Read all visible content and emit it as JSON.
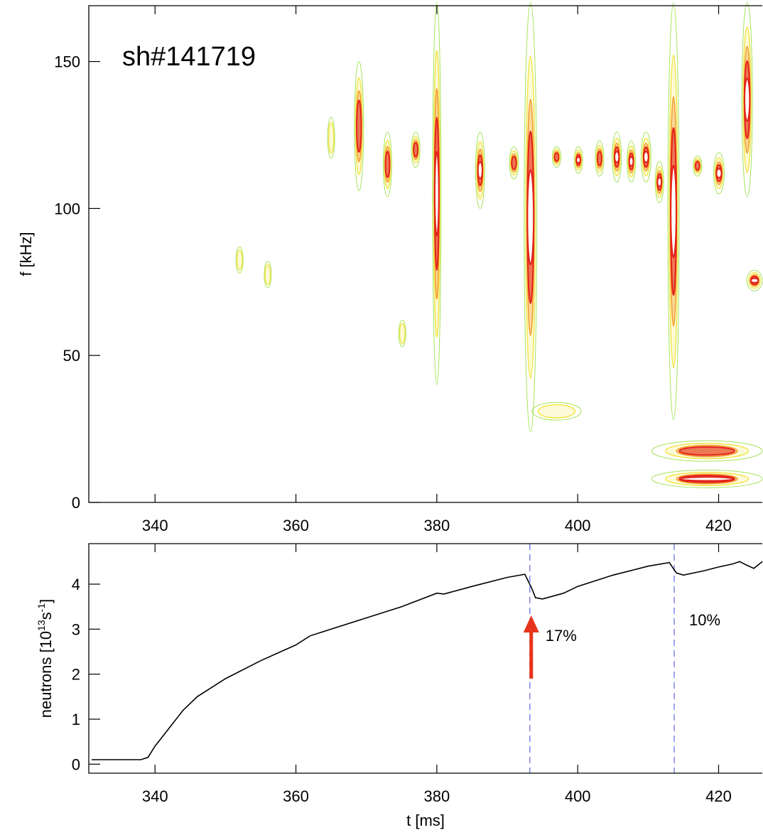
{
  "chart_data": [
    {
      "type": "spectrogram",
      "label": "sh#141719",
      "ylabel": "f [kHz]",
      "xlim": [
        330.6,
        426.2
      ],
      "ylim": [
        0,
        169
      ],
      "xticks": [
        340,
        360,
        380,
        400,
        420
      ],
      "yticks": [
        0,
        50,
        100,
        150
      ],
      "modes": [
        {
          "t": [
            364.5,
            365.5
          ],
          "f": [
            117,
            131
          ],
          "level": 1
        },
        {
          "t": [
            368.3,
            369.6
          ],
          "f": [
            106,
            150
          ],
          "level": 2
        },
        {
          "t": [
            372.4,
            373.6
          ],
          "f": [
            104,
            126
          ],
          "level": 2
        },
        {
          "t": [
            376.4,
            377.6
          ],
          "f": [
            114,
            126
          ],
          "level": 2
        },
        {
          "t": [
            379.4,
            380.6
          ],
          "f": [
            40,
            170
          ],
          "level": 3
        },
        {
          "t": [
            385.5,
            386.8
          ],
          "f": [
            100,
            126
          ],
          "level": 3
        },
        {
          "t": [
            390.3,
            391.6
          ],
          "f": [
            110,
            121
          ],
          "level": 2
        },
        {
          "t": [
            392.4,
            394.2
          ],
          "f": [
            24,
            170
          ],
          "level": 3
        },
        {
          "t": [
            396.4,
            397.6
          ],
          "f": [
            114,
            121
          ],
          "level": 2
        },
        {
          "t": [
            399.5,
            400.7
          ],
          "f": [
            112,
            121
          ],
          "level": 3
        },
        {
          "t": [
            402.5,
            403.7
          ],
          "f": [
            111,
            123
          ],
          "level": 2
        },
        {
          "t": [
            404.9,
            406.2
          ],
          "f": [
            109,
            126
          ],
          "level": 3
        },
        {
          "t": [
            407,
            408.2
          ],
          "f": [
            109,
            123
          ],
          "level": 3
        },
        {
          "t": [
            409,
            410.4
          ],
          "f": [
            109,
            126
          ],
          "level": 3
        },
        {
          "t": [
            411,
            412.2
          ],
          "f": [
            102,
            116
          ],
          "level": 3
        },
        {
          "t": [
            412.8,
            414.4
          ],
          "f": [
            28,
            170
          ],
          "level": 3
        },
        {
          "t": [
            416.4,
            417.6
          ],
          "f": [
            111,
            118
          ],
          "level": 2
        },
        {
          "t": [
            419.3,
            420.8
          ],
          "f": [
            105,
            119
          ],
          "level": 3
        },
        {
          "t": [
            423.3,
            424.8
          ],
          "f": [
            104,
            170
          ],
          "level": 3
        },
        {
          "t": [
            424,
            426.2
          ],
          "f": [
            72,
            79
          ],
          "level": 3
        },
        {
          "t": [
            410.5,
            426.2
          ],
          "f": [
            5,
            11
          ],
          "level": 3
        },
        {
          "t": [
            410.5,
            426.2
          ],
          "f": [
            14,
            21
          ],
          "level": 2
        },
        {
          "t": [
            393.5,
            400.5
          ],
          "f": [
            28,
            34
          ],
          "level": 1
        },
        {
          "t": [
            351.5,
            352.5
          ],
          "f": [
            78,
            87
          ],
          "level": 1
        },
        {
          "t": [
            355.5,
            356.5
          ],
          "f": [
            73,
            82
          ],
          "level": 1
        },
        {
          "t": [
            374.6,
            375.6
          ],
          "f": [
            53,
            62
          ],
          "level": 1
        }
      ]
    },
    {
      "type": "line",
      "ylabel": [
        "neutrons [10",
        "13",
        "s",
        "-1",
        "]"
      ],
      "xlabel": "t [ms]",
      "xlim": [
        330.6,
        426.2
      ],
      "ylim": [
        -0.2,
        4.9
      ],
      "xticks": [
        340,
        360,
        380,
        400,
        420
      ],
      "yticks": [
        0,
        1,
        2,
        3,
        4
      ],
      "color": "#000000",
      "x": [
        331,
        338,
        339,
        340,
        342,
        344,
        346,
        350,
        355,
        360,
        362,
        365,
        370,
        375,
        380,
        381,
        385,
        390,
        392.5,
        393.5,
        394,
        395,
        398,
        400,
        405,
        410,
        413,
        414,
        415,
        418,
        420,
        422,
        423,
        424,
        425,
        426.2
      ],
      "values": [
        0.1,
        0.1,
        0.15,
        0.4,
        0.8,
        1.2,
        1.5,
        1.9,
        2.3,
        2.65,
        2.85,
        3.0,
        3.25,
        3.5,
        3.8,
        3.78,
        3.95,
        4.15,
        4.22,
        3.9,
        3.7,
        3.67,
        3.8,
        3.95,
        4.2,
        4.4,
        4.48,
        4.25,
        4.2,
        4.3,
        4.38,
        4.45,
        4.5,
        4.42,
        4.35,
        4.5
      ],
      "events": [
        {
          "t": 393.2,
          "label": "17%",
          "arrow": true
        },
        {
          "t": 413.7,
          "label": "10%",
          "arrow": false
        }
      ]
    }
  ]
}
